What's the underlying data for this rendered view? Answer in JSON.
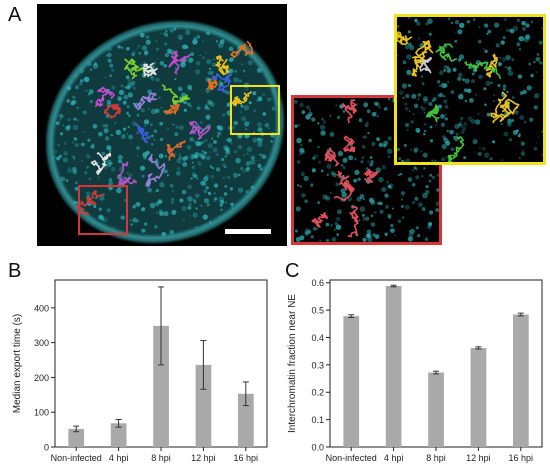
{
  "panels": {
    "a": "A",
    "b": "B",
    "c": "C"
  },
  "colors": {
    "nucleus": "#2a8f93",
    "red_box": "#d6353a",
    "yellow_box": "#f0e21c",
    "bar": "#a9a9a9",
    "error": "#333333"
  },
  "chart_data": [
    {
      "type": "bar",
      "categories": [
        "Non-infected",
        "4 hpi",
        "8 hpi",
        "12 hpi",
        "16 hpi"
      ],
      "values": [
        52,
        68,
        348,
        236,
        153
      ],
      "errors": [
        8,
        11,
        112,
        70,
        34
      ],
      "ylabel": "Median export time (s)",
      "ylim": [
        0,
        480
      ],
      "yticks": [
        0,
        100,
        200,
        300,
        400
      ],
      "grid": false
    },
    {
      "type": "bar",
      "categories": [
        "Non-infected",
        "4 hpi",
        "8 hpi",
        "12 hpi",
        "16 hpi"
      ],
      "values": [
        0.478,
        0.588,
        0.272,
        0.362,
        0.484
      ],
      "errors": [
        0.005,
        0.003,
        0.005,
        0.004,
        0.005
      ],
      "ylabel": "Interchromatin fraction near NE",
      "ylim": [
        0,
        0.61
      ],
      "yticks": [
        0.0,
        0.1,
        0.2,
        0.3,
        0.4,
        0.5,
        0.6
      ],
      "grid": false
    }
  ]
}
